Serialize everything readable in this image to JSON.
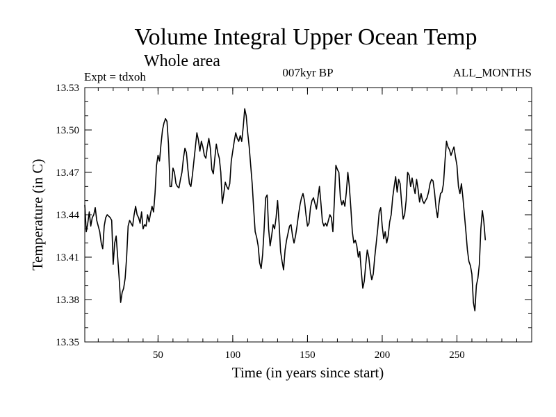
{
  "chart_data": {
    "type": "line",
    "title": "Volume Integral Upper Ocean Temp",
    "subtitle": "Whole area",
    "header_left": "Expt = tdxoh",
    "header_center": "007kyr BP",
    "header_right": "ALL_MONTHS",
    "xlabel": "Time (in years since start)",
    "ylabel": "Temperature (in C)",
    "xlim": [
      1,
      300
    ],
    "ylim": [
      13.35,
      13.53
    ],
    "x_ticks": [
      50,
      100,
      150,
      200,
      250
    ],
    "x_tick_labels": [
      "50",
      "100",
      "150",
      "200",
      "250"
    ],
    "y_ticks": [
      13.35,
      13.38,
      13.41,
      13.44,
      13.47,
      13.5,
      13.53
    ],
    "y_tick_labels": [
      "13.35",
      "13.38",
      "13.41",
      "13.44",
      "13.47",
      "13.50",
      "13.53"
    ],
    "grid": false,
    "line_color": "#000000",
    "series": [
      {
        "x_start": 1,
        "x_step": 1,
        "values": [
          13.447,
          13.428,
          13.434,
          13.442,
          13.432,
          13.438,
          13.44,
          13.445,
          13.436,
          13.432,
          13.428,
          13.42,
          13.416,
          13.432,
          13.438,
          13.44,
          13.439,
          13.438,
          13.436,
          13.405,
          13.42,
          13.425,
          13.41,
          13.395,
          13.378,
          13.385,
          13.388,
          13.395,
          13.41,
          13.432,
          13.436,
          13.434,
          13.432,
          13.44,
          13.446,
          13.44,
          13.438,
          13.434,
          13.442,
          13.43,
          13.433,
          13.432,
          13.44,
          13.435,
          13.441,
          13.446,
          13.442,
          13.455,
          13.475,
          13.482,
          13.478,
          13.49,
          13.5,
          13.505,
          13.508,
          13.506,
          13.49,
          13.46,
          13.46,
          13.473,
          13.47,
          13.462,
          13.46,
          13.459,
          13.465,
          13.47,
          13.48,
          13.487,
          13.484,
          13.472,
          13.462,
          13.46,
          13.468,
          13.478,
          13.488,
          13.498,
          13.493,
          13.485,
          13.492,
          13.488,
          13.482,
          13.48,
          13.488,
          13.494,
          13.487,
          13.472,
          13.469,
          13.48,
          13.49,
          13.484,
          13.48,
          13.47,
          13.448,
          13.455,
          13.463,
          13.46,
          13.458,
          13.462,
          13.478,
          13.485,
          13.492,
          13.498,
          13.494,
          13.492,
          13.496,
          13.492,
          13.502,
          13.515,
          13.51,
          13.498,
          13.488,
          13.475,
          13.462,
          13.444,
          13.428,
          13.424,
          13.418,
          13.406,
          13.402,
          13.412,
          13.43,
          13.452,
          13.454,
          13.43,
          13.418,
          13.425,
          13.433,
          13.43,
          13.438,
          13.45,
          13.434,
          13.414,
          13.407,
          13.401,
          13.415,
          13.422,
          13.427,
          13.432,
          13.433,
          13.425,
          13.42,
          13.425,
          13.432,
          13.44,
          13.447,
          13.452,
          13.455,
          13.45,
          13.44,
          13.432,
          13.434,
          13.445,
          13.45,
          13.452,
          13.448,
          13.444,
          13.452,
          13.46,
          13.448,
          13.435,
          13.432,
          13.434,
          13.432,
          13.436,
          13.44,
          13.438,
          13.428,
          13.45,
          13.475,
          13.472,
          13.47,
          13.452,
          13.447,
          13.45,
          13.446,
          13.456,
          13.47,
          13.46,
          13.445,
          13.428,
          13.42,
          13.422,
          13.418,
          13.41,
          13.414,
          13.4,
          13.388,
          13.393,
          13.405,
          13.415,
          13.41,
          13.4,
          13.394,
          13.398,
          13.41,
          13.42,
          13.43,
          13.442,
          13.445,
          13.432,
          13.423,
          13.428,
          13.42,
          13.425,
          13.435,
          13.44,
          13.452,
          13.46,
          13.467,
          13.456,
          13.465,
          13.462,
          13.448,
          13.437,
          13.44,
          13.45,
          13.47,
          13.468,
          13.46,
          13.466,
          13.46,
          13.455,
          13.465,
          13.458,
          13.449,
          13.455,
          13.45,
          13.448,
          13.45,
          13.452,
          13.456,
          13.462,
          13.465,
          13.464,
          13.456,
          13.445,
          13.438,
          13.448,
          13.455,
          13.456,
          13.462,
          13.478,
          13.492,
          13.488,
          13.486,
          13.482,
          13.485,
          13.488,
          13.481,
          13.475,
          13.46,
          13.455,
          13.462,
          13.452,
          13.44,
          13.428,
          13.415,
          13.407,
          13.404,
          13.398,
          13.378,
          13.372,
          13.39,
          13.395,
          13.405,
          13.43,
          13.443,
          13.435,
          13.422
        ]
      }
    ]
  }
}
